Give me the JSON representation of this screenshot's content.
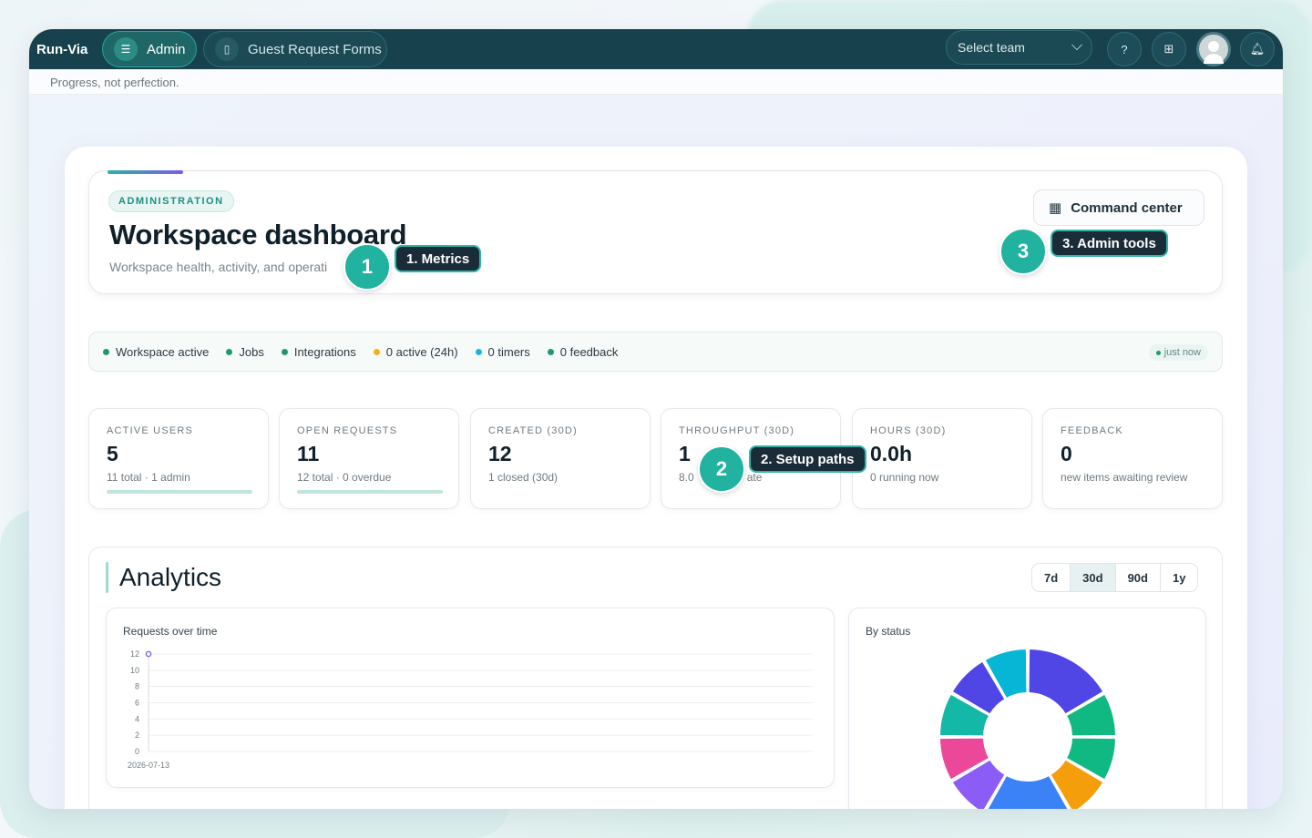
{
  "app": {
    "brand": "Run-Via",
    "tagline": "Progress, not perfection."
  },
  "nav": {
    "admin_label": "Admin",
    "guest_forms_label": "Guest Request Forms",
    "team_select_value": "Select team",
    "icons": [
      "help-icon",
      "apps-grid-icon",
      "avatar",
      "bell-icon"
    ]
  },
  "hero": {
    "eyebrow": "ADMINISTRATION",
    "title": "Workspace dashboard",
    "subtitle": "Workspace health, activity, and operati",
    "command_center_label": "Command center"
  },
  "tour": [
    {
      "number": "1",
      "label": "1. Metrics"
    },
    {
      "number": "2",
      "label": "2. Setup paths"
    },
    {
      "number": "3",
      "label": "3. Admin tools"
    }
  ],
  "status": {
    "items": [
      {
        "label": "Workspace active",
        "color": "#1f9a6a"
      },
      {
        "label": "Jobs",
        "color": "#1f9a6a"
      },
      {
        "label": "Integrations",
        "color": "#1f9a6a"
      },
      {
        "label": "0 active (24h)",
        "color": "#f2b01e"
      },
      {
        "label": "0 timers",
        "color": "#19b6dc"
      },
      {
        "label": "0 feedback",
        "color": "#1f9a6a"
      }
    ],
    "updated": "just now"
  },
  "metrics": [
    {
      "label": "ACTIVE USERS",
      "value": "5",
      "sub": "11 total · 1 admin",
      "bar": true,
      "fill": 1.0
    },
    {
      "label": "OPEN REQUESTS",
      "value": "11",
      "sub": "12 total · 0 overdue",
      "bar": true,
      "fill": 1.0
    },
    {
      "label": "CREATED (30D)",
      "value": "12",
      "sub": "1 closed (30d)",
      "bar": false
    },
    {
      "label": "THROUGHPUT (30D)",
      "value": "1",
      "sub": "8.0",
      "sub_tail": "ate",
      "bar": false
    },
    {
      "label": "HOURS (30D)",
      "value": "0.0h",
      "sub": "0 running now",
      "bar": false
    },
    {
      "label": "FEEDBACK",
      "value": "0",
      "sub": "new items awaiting review",
      "bar": false
    }
  ],
  "analytics": {
    "title": "Analytics",
    "ranges": [
      "7d",
      "30d",
      "90d",
      "1y"
    ],
    "active_range": "30d"
  },
  "chart_data": [
    {
      "type": "line",
      "title": "Requests over time",
      "x": [
        "2026-07-13"
      ],
      "series": [
        {
          "values": [
            12
          ]
        }
      ],
      "ylim": [
        0,
        12
      ],
      "yticks": [
        "12",
        "10",
        "8",
        "6",
        "4",
        "2",
        "0"
      ],
      "xticks": [
        "2026-07-13"
      ],
      "grid": true,
      "color": "#6d5be6"
    },
    {
      "type": "pie",
      "title": "By status",
      "donut": true,
      "slices": [
        {
          "value": 2,
          "color": "#4f46e5"
        },
        {
          "value": 1,
          "color": "#10b981"
        },
        {
          "value": 1,
          "color": "#10b981"
        },
        {
          "value": 1,
          "color": "#f59e0b"
        },
        {
          "value": 2,
          "color": "#3b82f6"
        },
        {
          "value": 1,
          "color": "#8b5cf6"
        },
        {
          "value": 1,
          "color": "#ec4899"
        },
        {
          "value": 1,
          "color": "#14b8a6"
        },
        {
          "value": 1,
          "color": "#4f46e5"
        },
        {
          "value": 1,
          "color": "#06b6d4"
        }
      ]
    }
  ]
}
